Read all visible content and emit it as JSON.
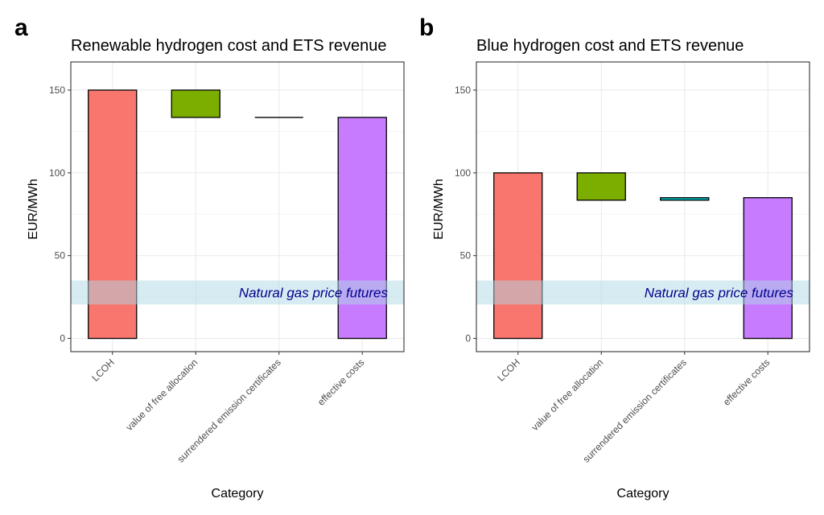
{
  "colors": {
    "lcoh": "#F8766D",
    "free_allocation": "#7CAE00",
    "surrendered": "#00BFC4",
    "effective": "#C77CFF",
    "band": "#ADD8E6",
    "band_text": "#00008B",
    "grid_major": "#EBEBEB",
    "grid_minor": "#F5F5F5",
    "panel_border": "#333333"
  },
  "chart_data": [
    {
      "panel_letter": "a",
      "type": "bar",
      "subtype": "waterfall",
      "title": "Renewable hydrogen cost and ETS revenue",
      "xlabel": "Category",
      "ylabel": "EUR/MWh",
      "ylim": [
        -8,
        167
      ],
      "yticks": [
        0,
        50,
        100,
        150
      ],
      "grid": true,
      "categories": [
        "LCOH",
        "value of free allocation",
        "surrendered emission certificates",
        "effective costs"
      ],
      "bars": [
        {
          "category": "LCOH",
          "ymin": 0,
          "ymax": 150,
          "color_key": "lcoh"
        },
        {
          "category": "value of free allocation",
          "ymin": 133.5,
          "ymax": 150,
          "color_key": "free_allocation"
        },
        {
          "category": "surrendered emission certificates",
          "ymin": 133.5,
          "ymax": 133.5,
          "color_key": "surrendered"
        },
        {
          "category": "effective costs",
          "ymin": 0,
          "ymax": 133.5,
          "color_key": "effective"
        }
      ],
      "band": {
        "ymin": 20.5,
        "ymax": 35,
        "label": "Natural gas price futures"
      }
    },
    {
      "panel_letter": "b",
      "type": "bar",
      "subtype": "waterfall",
      "title": "Blue hydrogen cost and ETS revenue",
      "xlabel": "Category",
      "ylabel": "EUR/MWh",
      "ylim": [
        -8,
        167
      ],
      "yticks": [
        0,
        50,
        100,
        150
      ],
      "grid": true,
      "categories": [
        "LCOH",
        "value of free allocation",
        "surrendered emission certificates",
        "effective costs"
      ],
      "bars": [
        {
          "category": "LCOH",
          "ymin": 0,
          "ymax": 100,
          "color_key": "lcoh"
        },
        {
          "category": "value of free allocation",
          "ymin": 83.5,
          "ymax": 100,
          "color_key": "free_allocation"
        },
        {
          "category": "surrendered emission certificates",
          "ymin": 83.5,
          "ymax": 85,
          "color_key": "surrendered"
        },
        {
          "category": "effective costs",
          "ymin": 0,
          "ymax": 85,
          "color_key": "effective"
        }
      ],
      "band": {
        "ymin": 20.5,
        "ymax": 35,
        "label": "Natural gas price futures"
      }
    }
  ]
}
